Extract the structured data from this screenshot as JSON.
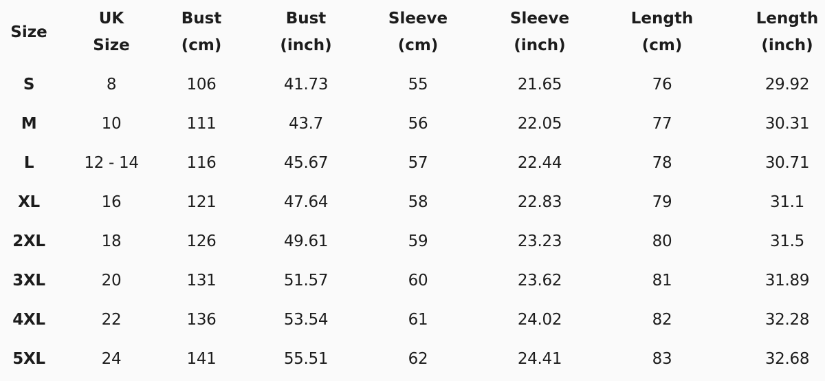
{
  "table": {
    "headers": [
      [
        "Size"
      ],
      [
        "UK",
        "Size"
      ],
      [
        "Bust",
        "(cm)"
      ],
      [
        "Bust",
        "(inch)"
      ],
      [
        "Sleeve",
        "(cm)"
      ],
      [
        "Sleeve",
        "(inch)"
      ],
      [
        "Length",
        "(cm)"
      ],
      [
        "Length",
        "(inch)"
      ]
    ],
    "rows": [
      [
        "S",
        "8",
        "106",
        "41.73",
        "55",
        "21.65",
        "76",
        "29.92"
      ],
      [
        "M",
        "10",
        "111",
        "43.7",
        "56",
        "22.05",
        "77",
        "30.31"
      ],
      [
        "L",
        "12 - 14",
        "116",
        "45.67",
        "57",
        "22.44",
        "78",
        "30.71"
      ],
      [
        "XL",
        "16",
        "121",
        "47.64",
        "58",
        "22.83",
        "79",
        "31.1"
      ],
      [
        "2XL",
        "18",
        "126",
        "49.61",
        "59",
        "23.23",
        "80",
        "31.5"
      ],
      [
        "3XL",
        "20",
        "131",
        "51.57",
        "60",
        "23.62",
        "81",
        "31.89"
      ],
      [
        "4XL",
        "22",
        "136",
        "53.54",
        "61",
        "24.02",
        "82",
        "32.28"
      ],
      [
        "5XL",
        "24",
        "141",
        "55.51",
        "62",
        "24.41",
        "83",
        "32.68"
      ]
    ]
  }
}
